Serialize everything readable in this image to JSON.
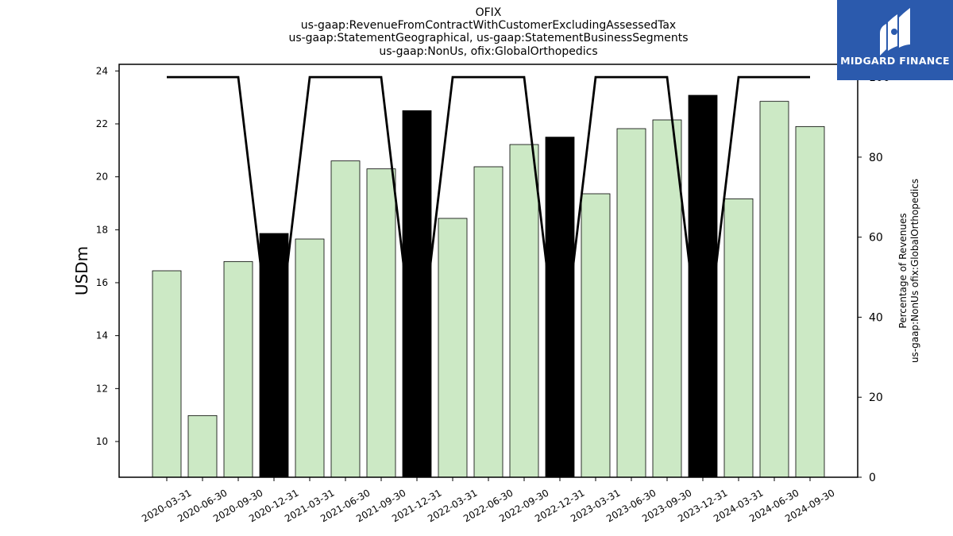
{
  "chart_data": {
    "type": "bar",
    "title_lines": [
      "OFIX",
      "us-gaap:RevenueFromContractWithCustomerExcludingAssessedTax",
      "us-gaap:StatementGeographical, us-gaap:StatementBusinessSegments",
      "us-gaap:NonUs, ofix:GlobalOrthopedics"
    ],
    "categories": [
      "2020-03-31",
      "2020-06-30",
      "2020-09-30",
      "2020-12-31",
      "2021-03-31",
      "2021-06-30",
      "2021-09-30",
      "2021-12-31",
      "2022-03-31",
      "2022-06-30",
      "2022-09-30",
      "2022-12-31",
      "2023-03-31",
      "2023-06-30",
      "2023-09-30",
      "2023-12-31",
      "2024-03-31",
      "2024-06-30",
      "2024-09-30"
    ],
    "series": [
      {
        "type": "bar",
        "axis": "left",
        "values": [
          16.45,
          10.98,
          16.8,
          17.86,
          17.65,
          20.6,
          20.3,
          22.5,
          18.43,
          20.38,
          21.22,
          21.5,
          19.36,
          21.82,
          22.15,
          23.08,
          19.17,
          22.85,
          21.9
        ],
        "highlight_indices": [
          3,
          7,
          11,
          15
        ]
      },
      {
        "type": "line",
        "axis": "right",
        "values": [
          100,
          100,
          100,
          25,
          100,
          100,
          100,
          25,
          100,
          100,
          100,
          25,
          100,
          100,
          100,
          25,
          100,
          100,
          100
        ]
      }
    ],
    "ylabel": "USDm",
    "y2label_lines": [
      "Percentage of Revenues",
      "us-gaap:NonUs ofix:GlobalOrthopedics"
    ],
    "ylim": [
      8.65,
      24.25
    ],
    "y2lim": [
      0,
      103.2
    ],
    "yticks": [
      10,
      12,
      14,
      16,
      18,
      20,
      22,
      24
    ],
    "y2ticks": [
      0,
      20,
      40,
      60,
      80,
      100
    ],
    "grid": false,
    "colors": {
      "bar": "#cce9c5",
      "bar_highlight": "#000000",
      "bar_edge": "#000000",
      "line": "#000000"
    }
  },
  "logo": {
    "text": "MIDGARD FINANCE",
    "bg_color": "#2b5aad",
    "icon": "midgard-logo-icon"
  }
}
